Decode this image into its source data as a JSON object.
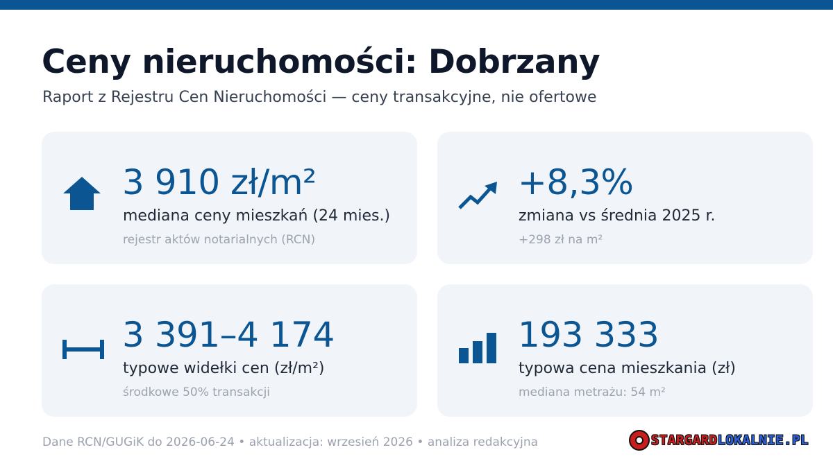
{
  "header": {
    "title": "Ceny nieruchomości: Dobrzany",
    "subtitle": "Raport z Rejestru Cen Nieruchomości — ceny transakcyjne, nie ofertowe"
  },
  "colors": {
    "accent": "#0a5592",
    "card_background": "#f1f4f9",
    "muted_text": "#9ca3af"
  },
  "cards": [
    {
      "icon": "house-icon",
      "value": "3 910 zł/m²",
      "label": "mediana ceny mieszkań (24 mies.)",
      "note": "rejestr aktów notarialnych (RCN)"
    },
    {
      "icon": "trend-up-icon",
      "value": "+8,3%",
      "label": "zmiana vs średnia 2025 r.",
      "note": "+298 zł na m²"
    },
    {
      "icon": "range-icon",
      "value": "3 391–4 174",
      "label": "typowe widełki cen (zł/m²)",
      "note": "środkowe 50% transakcji"
    },
    {
      "icon": "bar-chart-icon",
      "value": "193 333",
      "label": "typowa cena mieszkania (zł)",
      "note": "mediana metrażu: 54 m²"
    }
  ],
  "footer": {
    "text": "Dane RCN/GUGiK do 2026-06-24 • aktualizacja: wrzesień 2026 • analiza redakcyjna"
  },
  "logo": {
    "part1": "STARGARD",
    "part2": "LOKALNIE.PL"
  }
}
